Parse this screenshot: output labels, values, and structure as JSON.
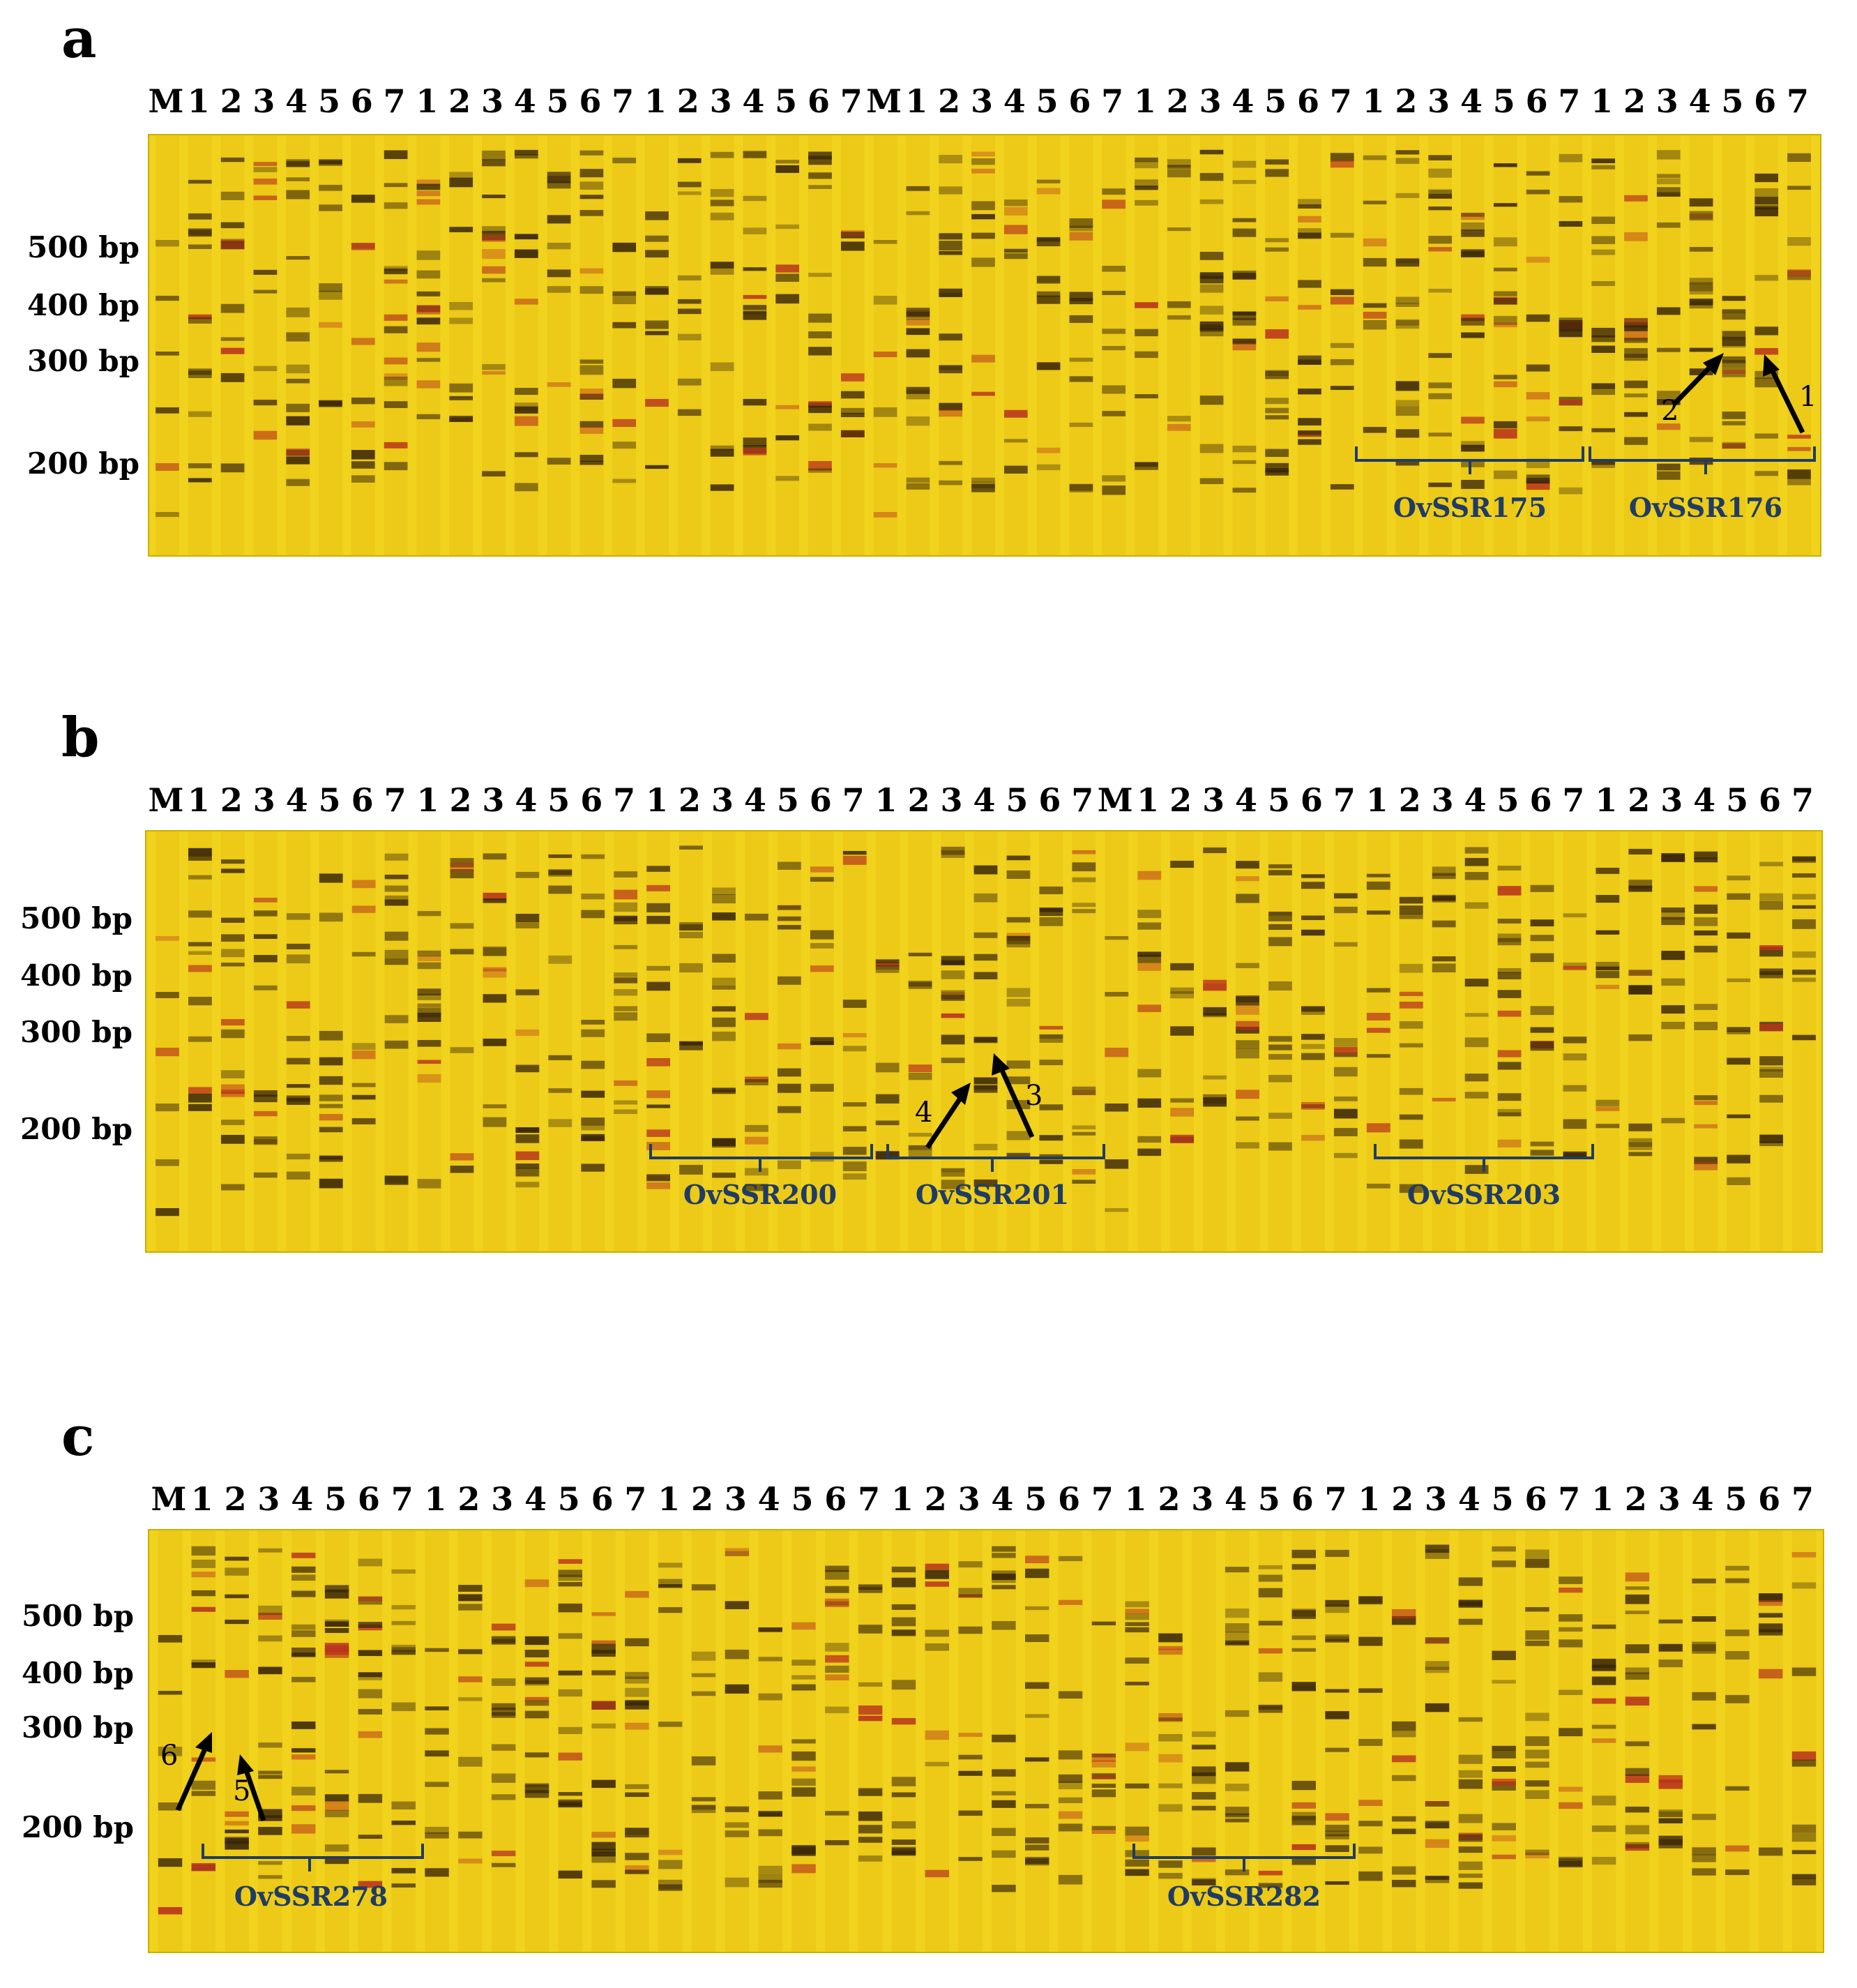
{
  "colors": {
    "gel": "#f1d21c",
    "band_dark": "#3a2608",
    "band_red": "#b8331c",
    "bracket": "#1f3c66"
  },
  "panels": [
    {
      "letter": "a",
      "lanes": [
        "M",
        "1",
        "2",
        "3",
        "4",
        "5",
        "6",
        "7",
        "1",
        "2",
        "3",
        "4",
        "5",
        "6",
        "7",
        "1",
        "2",
        "3",
        "4",
        "5",
        "6",
        "7",
        "M",
        "1",
        "2",
        "3",
        "4",
        "5",
        "6",
        "7",
        "1",
        "2",
        "3",
        "4",
        "5",
        "6",
        "7",
        "1",
        "2",
        "3",
        "4",
        "5",
        "6",
        "7",
        "1",
        "2",
        "3",
        "4",
        "5",
        "6",
        "7"
      ],
      "ladder": [
        "500 bp",
        "400 bp",
        "300 bp",
        "200 bp"
      ],
      "markers": [
        "OvSSR175",
        "OvSSR176"
      ],
      "arrows": [
        "2",
        "1"
      ]
    },
    {
      "letter": "b",
      "lanes": [
        "M",
        "1",
        "2",
        "3",
        "4",
        "5",
        "6",
        "7",
        "1",
        "2",
        "3",
        "4",
        "5",
        "6",
        "7",
        "1",
        "2",
        "3",
        "4",
        "5",
        "6",
        "7",
        "1",
        "2",
        "3",
        "4",
        "5",
        "6",
        "7",
        "M",
        "1",
        "2",
        "3",
        "4",
        "5",
        "6",
        "7",
        "1",
        "2",
        "3",
        "4",
        "5",
        "6",
        "7",
        "1",
        "2",
        "3",
        "4",
        "5",
        "6",
        "7"
      ],
      "ladder": [
        "500 bp",
        "400 bp",
        "300 bp",
        "200 bp"
      ],
      "markers": [
        "OvSSR200",
        "OvSSR201",
        "OvSSR203"
      ],
      "arrows": [
        "4",
        "3"
      ]
    },
    {
      "letter": "c",
      "lanes": [
        "M",
        "1",
        "2",
        "3",
        "4",
        "5",
        "6",
        "7",
        "1",
        "2",
        "3",
        "4",
        "5",
        "6",
        "7",
        "1",
        "2",
        "3",
        "4",
        "5",
        "6",
        "7",
        "1",
        "2",
        "3",
        "4",
        "5",
        "6",
        "7",
        "1",
        "2",
        "3",
        "4",
        "5",
        "6",
        "7",
        "1",
        "2",
        "3",
        "4",
        "5",
        "6",
        "7",
        "1",
        "2",
        "3",
        "4",
        "5",
        "6",
        "7"
      ],
      "ladder": [
        "500 bp",
        "400 bp",
        "300 bp",
        "200 bp"
      ],
      "markers": [
        "OvSSR278",
        "OvSSR282"
      ],
      "arrows": [
        "6",
        "5"
      ]
    }
  ]
}
